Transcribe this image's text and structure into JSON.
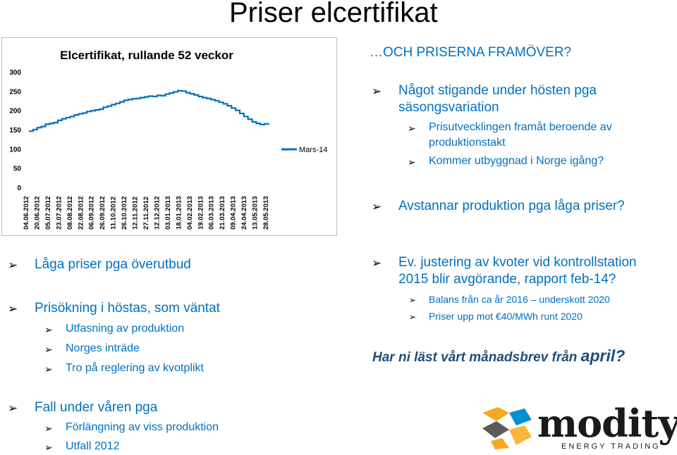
{
  "slide": {
    "title": "Priser elcertifikat",
    "right_heading": "…OCH PRISERNA FRAMÖVER?",
    "right_items": [
      {
        "level": 1,
        "text": "Något stigande under hösten pga"
      },
      {
        "level": 1,
        "text": "säsongsvariation",
        "continuation": true
      },
      {
        "level": 2,
        "text": "Prisutvecklingen framåt beroende av"
      },
      {
        "level": 2,
        "text": "produktionstakt",
        "continuation": true
      },
      {
        "level": 2,
        "text": "Kommer utbyggnad i Norge igång?"
      },
      {
        "level": 1,
        "text": "Avstannar produktion pga låga priser?"
      }
    ],
    "left_items": [
      {
        "level": 1,
        "text": "Låga priser pga överutbud"
      },
      {
        "level": 1,
        "text": "Prisökning i höstas, som väntat"
      },
      {
        "level": 2,
        "text": "Utfasning av produktion"
      },
      {
        "level": 2,
        "text": "Norges inträde"
      },
      {
        "level": 2,
        "text": "Tro på reglering av kvotplikt"
      },
      {
        "level": 1,
        "text": "Fall under våren pga"
      },
      {
        "level": 2,
        "text": "Förlängning av viss produktion"
      },
      {
        "level": 2,
        "text": "Utfall 2012"
      }
    ],
    "mid_items": [
      {
        "level": 1,
        "text": "Ev. justering av kvoter vid kontrollstation"
      },
      {
        "level": 1,
        "text": "2015 blir avgörande, rapport feb-14?",
        "continuation": true
      },
      {
        "level": 3,
        "text": "Balans från ca år 2016 – underskott 2020"
      },
      {
        "level": 3,
        "text": "Priser upp mot €40/MWh runt 2020"
      }
    ],
    "callout_text": "Har ni läst vårt månadsbrev från ",
    "callout_emph": "april?",
    "logo": {
      "word": "modity",
      "sub": "ENERGY TRADING",
      "colors": [
        "#f7a823",
        "#0092cf",
        "#5b5b5b",
        "#fbb73b"
      ]
    }
  },
  "chart_data": {
    "type": "line",
    "title": "Elcertifikat, rullande 52 veckor",
    "ylim": [
      0,
      300
    ],
    "yticks": [
      0,
      50,
      100,
      150,
      200,
      250,
      300
    ],
    "x_labels": [
      "04.06.2012",
      "20.06.2012",
      "05.07.2012",
      "23.07.2012",
      "08.08.2012",
      "22.08.2012",
      "06.09.2012",
      "26.09.2012",
      "11.10.2012",
      "26.10.2012",
      "12.11.2012",
      "27.11.2012",
      "12.12.2012",
      "03.01.2013",
      "18.01.2013",
      "04.02.2013",
      "19.02.2013",
      "06.03.2013",
      "21.03.2013",
      "09.04.2013",
      "24.04.2013",
      "13.05.2013",
      "28.05.2013"
    ],
    "grid": false,
    "legend_position": "right",
    "color": "#0070c0",
    "series": [
      {
        "name": "Mars-14",
        "values": [
          146,
          150,
          155,
          158,
          164,
          166,
          168,
          174,
          178,
          181,
          184,
          188,
          191,
          193,
          197,
          199,
          201,
          203,
          208,
          211,
          215,
          218,
          222,
          226,
          228,
          230,
          231,
          233,
          235,
          237,
          236,
          239,
          238,
          242,
          245,
          248,
          251,
          250,
          246,
          243,
          240,
          236,
          233,
          231,
          228,
          225,
          221,
          217,
          212,
          206,
          200,
          192,
          184,
          177,
          170,
          166,
          163,
          165,
          166
        ]
      }
    ]
  }
}
